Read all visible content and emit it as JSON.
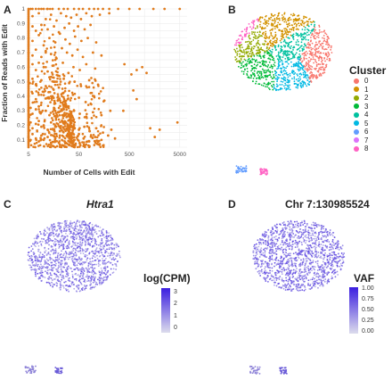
{
  "panels": {
    "a": {
      "letter": "A"
    },
    "b": {
      "letter": "B"
    },
    "c": {
      "letter": "C",
      "title": "Htra1"
    },
    "d": {
      "letter": "D",
      "title": "Chr 7:130985524"
    }
  },
  "chart_data": [
    {
      "type": "scatter",
      "panel": "A",
      "xlabel": "Number of Cells with Edit",
      "ylabel": "Fraction of Reads with Edit",
      "x_scale": "log",
      "xlim": [
        5,
        7000
      ],
      "ylim": [
        0.05,
        1.0
      ],
      "x_ticks": [
        "5",
        "50",
        "500",
        "5000"
      ],
      "y_ticks": [
        "0.1",
        "0.2",
        "0.3",
        "0.4",
        "0.5",
        "0.6",
        "0.7",
        "0.8",
        "0.9",
        "1"
      ],
      "grid": true,
      "color": "#e07b1c",
      "series": [
        {
          "values": [
            [
              5,
              1.0
            ],
            [
              5.5,
              1.0
            ],
            [
              6,
              1.0
            ],
            [
              7,
              1.0
            ],
            [
              8,
              1.0
            ],
            [
              9,
              1.0
            ],
            [
              10,
              1.0
            ],
            [
              12,
              1.0
            ],
            [
              15,
              1.0
            ],
            [
              20,
              1.0
            ],
            [
              25,
              1.0
            ],
            [
              30,
              1.0
            ],
            [
              40,
              1.0
            ],
            [
              50,
              1.0
            ],
            [
              60,
              1.0
            ],
            [
              80,
              1.0
            ],
            [
              100,
              1.0
            ],
            [
              120,
              1.0
            ],
            [
              150,
              1.0
            ],
            [
              200,
              1.0
            ],
            [
              300,
              1.0
            ],
            [
              500,
              1.0
            ],
            [
              800,
              1.0
            ],
            [
              1500,
              1.0
            ],
            [
              2500,
              1.0
            ],
            [
              5000,
              1.0
            ],
            [
              6,
              0.95
            ],
            [
              8,
              0.97
            ],
            [
              11,
              0.93
            ],
            [
              14,
              0.96
            ],
            [
              18,
              0.92
            ],
            [
              22,
              0.97
            ],
            [
              28,
              0.95
            ],
            [
              35,
              0.94
            ],
            [
              45,
              0.96
            ],
            [
              55,
              0.93
            ],
            [
              70,
              0.97
            ],
            [
              90,
              0.95
            ],
            [
              130,
              0.96
            ],
            [
              200,
              0.97
            ],
            [
              6,
              0.88
            ],
            [
              7,
              0.85
            ],
            [
              9,
              0.89
            ],
            [
              12,
              0.86
            ],
            [
              16,
              0.88
            ],
            [
              20,
              0.84
            ],
            [
              26,
              0.87
            ],
            [
              32,
              0.9
            ],
            [
              40,
              0.85
            ],
            [
              48,
              0.88
            ],
            [
              65,
              0.86
            ],
            [
              85,
              0.89
            ],
            [
              5,
              0.8
            ],
            [
              6,
              0.78
            ],
            [
              8,
              0.82
            ],
            [
              10,
              0.75
            ],
            [
              13,
              0.8
            ],
            [
              17,
              0.77
            ],
            [
              21,
              0.83
            ],
            [
              27,
              0.79
            ],
            [
              33,
              0.76
            ],
            [
              42,
              0.81
            ],
            [
              56,
              0.78
            ],
            [
              75,
              0.8
            ],
            [
              110,
              0.77
            ],
            [
              5,
              0.7
            ],
            [
              6,
              0.68
            ],
            [
              7,
              0.72
            ],
            [
              9,
              0.67
            ],
            [
              11,
              0.71
            ],
            [
              14,
              0.69
            ],
            [
              18,
              0.66
            ],
            [
              23,
              0.73
            ],
            [
              29,
              0.7
            ],
            [
              37,
              0.68
            ],
            [
              47,
              0.72
            ],
            [
              60,
              0.67
            ],
            [
              95,
              0.7
            ],
            [
              140,
              0.68
            ],
            [
              5,
              0.6
            ],
            [
              6,
              0.62
            ],
            [
              7,
              0.58
            ],
            [
              8,
              0.63
            ],
            [
              10,
              0.6
            ],
            [
              12,
              0.57
            ],
            [
              15,
              0.61
            ],
            [
              19,
              0.59
            ],
            [
              24,
              0.63
            ],
            [
              31,
              0.56
            ],
            [
              39,
              0.6
            ],
            [
              52,
              0.58
            ],
            [
              70,
              0.62
            ],
            [
              105,
              0.59
            ],
            [
              5,
              0.5
            ],
            [
              6,
              0.52
            ],
            [
              7,
              0.48
            ],
            [
              9,
              0.51
            ],
            [
              11,
              0.47
            ],
            [
              13,
              0.53
            ],
            [
              16,
              0.5
            ],
            [
              20,
              0.46
            ],
            [
              25,
              0.52
            ],
            [
              32,
              0.49
            ],
            [
              41,
              0.5
            ],
            [
              55,
              0.47
            ],
            [
              80,
              0.51
            ],
            [
              120,
              0.48
            ],
            [
              5,
              0.4
            ],
            [
              6,
              0.42
            ],
            [
              7,
              0.38
            ],
            [
              8,
              0.41
            ],
            [
              10,
              0.43
            ],
            [
              12,
              0.39
            ],
            [
              15,
              0.4
            ],
            [
              19,
              0.37
            ],
            [
              24,
              0.42
            ],
            [
              30,
              0.38
            ],
            [
              38,
              0.41
            ],
            [
              50,
              0.39
            ],
            [
              68,
              0.36
            ],
            [
              100,
              0.4
            ],
            [
              160,
              0.37
            ],
            [
              5,
              0.3
            ],
            [
              5.5,
              0.32
            ],
            [
              6,
              0.28
            ],
            [
              7,
              0.31
            ],
            [
              8,
              0.33
            ],
            [
              9,
              0.29
            ],
            [
              11,
              0.3
            ],
            [
              13,
              0.27
            ],
            [
              16,
              0.32
            ],
            [
              20,
              0.29
            ],
            [
              25,
              0.31
            ],
            [
              31,
              0.27
            ],
            [
              40,
              0.3
            ],
            [
              52,
              0.28
            ],
            [
              70,
              0.26
            ],
            [
              95,
              0.29
            ],
            [
              140,
              0.27
            ],
            [
              210,
              0.3
            ],
            [
              5,
              0.2
            ],
            [
              5.5,
              0.22
            ],
            [
              6,
              0.18
            ],
            [
              7,
              0.21
            ],
            [
              8,
              0.23
            ],
            [
              9,
              0.19
            ],
            [
              10,
              0.2
            ],
            [
              12,
              0.17
            ],
            [
              14,
              0.22
            ],
            [
              17,
              0.19
            ],
            [
              21,
              0.16
            ],
            [
              26,
              0.21
            ],
            [
              32,
              0.18
            ],
            [
              40,
              0.2
            ],
            [
              50,
              0.17
            ],
            [
              64,
              0.19
            ],
            [
              82,
              0.16
            ],
            [
              110,
              0.18
            ],
            [
              150,
              0.15
            ],
            [
              220,
              0.17
            ],
            [
              5,
              0.12
            ],
            [
              5.5,
              0.1
            ],
            [
              6,
              0.14
            ],
            [
              7,
              0.11
            ],
            [
              8,
              0.09
            ],
            [
              9,
              0.13
            ],
            [
              10,
              0.1
            ],
            [
              12,
              0.12
            ],
            [
              14,
              0.08
            ],
            [
              17,
              0.11
            ],
            [
              21,
              0.13
            ],
            [
              26,
              0.09
            ],
            [
              32,
              0.12
            ],
            [
              40,
              0.1
            ],
            [
              50,
              0.14
            ],
            [
              62,
              0.11
            ],
            [
              80,
              0.09
            ],
            [
              105,
              0.12
            ],
            [
              140,
              0.1
            ],
            [
              190,
              0.13
            ],
            [
              260,
              0.11
            ],
            [
              400,
              0.62
            ],
            [
              550,
              0.55
            ],
            [
              600,
              0.44
            ],
            [
              700,
              0.58
            ],
            [
              900,
              0.6
            ],
            [
              1100,
              0.56
            ],
            [
              700,
              0.38
            ],
            [
              380,
              0.3
            ],
            [
              1300,
              0.18
            ],
            [
              2000,
              0.17
            ],
            [
              4500,
              0.22
            ],
            [
              1600,
              0.12
            ]
          ]
        }
      ]
    },
    {
      "type": "scatter",
      "panel": "B",
      "legend_title": "Cluster",
      "legend": [
        "0",
        "1",
        "2",
        "3",
        "4",
        "5",
        "6",
        "7",
        "8"
      ],
      "colors": [
        "#f8766d",
        "#d39200",
        "#93aa00",
        "#00ba38",
        "#00c19f",
        "#00b9e3",
        "#619cff",
        "#db72fb",
        "#ff61c3"
      ]
    },
    {
      "type": "scatter",
      "panel": "C",
      "legend_title": "log(CPM)",
      "scale_ticks": [
        "3",
        "2",
        "1",
        "0"
      ],
      "scale_colors": [
        "#dcdcec",
        "#3b1ee0"
      ]
    },
    {
      "type": "scatter",
      "panel": "D",
      "legend_title": "VAF",
      "scale_ticks": [
        "1.00",
        "0.75",
        "0.50",
        "0.25",
        "0.00"
      ],
      "scale_colors": [
        "#dcdcec",
        "#3b1ee0"
      ]
    }
  ]
}
